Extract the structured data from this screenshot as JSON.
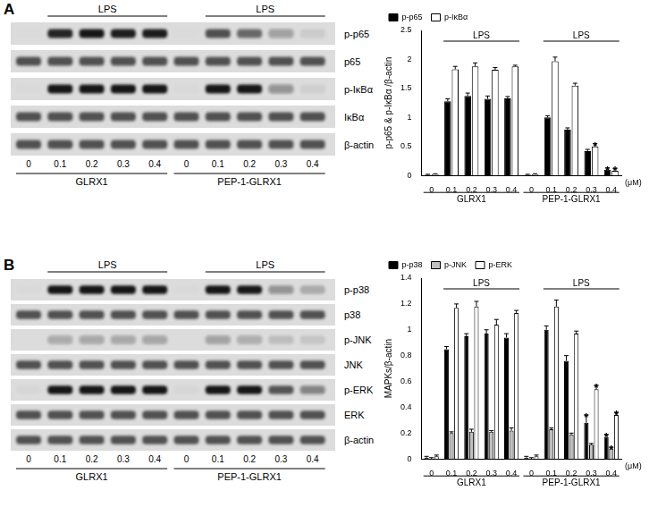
{
  "chart_data": [
    {
      "type": "bar",
      "panel": "A",
      "y_label": "p-p65 & p-IκBα /β-actin",
      "x_label": "(μM)",
      "categories": [
        "0",
        "0.1",
        "0.2",
        "0.3",
        "0.4",
        "0",
        "0.1",
        "0.2",
        "0.3",
        "0.4"
      ],
      "series": [
        {
          "name": "p-p65",
          "color": "#000000",
          "values": [
            0.01,
            1.28,
            1.37,
            1.32,
            1.33,
            0.01,
            1.0,
            0.79,
            0.42,
            0.1
          ],
          "errors": [
            0.01,
            0.04,
            0.05,
            0.05,
            0.03,
            0.01,
            0.03,
            0.03,
            0.03,
            0.03
          ]
        },
        {
          "name": "p-IκBα",
          "color": "#ffffff",
          "values": [
            0.02,
            1.83,
            1.88,
            1.82,
            1.88,
            0.02,
            1.97,
            1.55,
            0.5,
            0.08
          ],
          "errors": [
            0.01,
            0.05,
            0.06,
            0.04,
            0.02,
            0.01,
            0.07,
            0.04,
            0.05,
            0.04
          ]
        }
      ],
      "ylim": [
        0,
        2.5
      ],
      "yticks": [
        0,
        0.5,
        1,
        1.5,
        2,
        2.5
      ],
      "grid": false,
      "legend": "top",
      "groups": [
        {
          "label": "GLRX1",
          "from": 0,
          "to": 4
        },
        {
          "label": "PEP-1-GLRX1",
          "from": 5,
          "to": 9
        }
      ],
      "brackets": [
        {
          "label": "LPS",
          "from": 1,
          "to": 4
        },
        {
          "label": "LPS",
          "from": 6,
          "to": 9
        }
      ],
      "annotations": [
        {
          "text": "*",
          "index": 8,
          "series": "p-IκBα"
        },
        {
          "text": "*",
          "index": 9,
          "series": "p-p65"
        },
        {
          "text": "*",
          "index": 9,
          "series": "p-IκBα"
        }
      ],
      "blot": {
        "rows": [
          {
            "name": "p-p65",
            "series": "p-p65"
          },
          {
            "name": "p65"
          },
          {
            "name": "p-IκBα",
            "series": "p-IκBα"
          },
          {
            "name": "IκBα"
          },
          {
            "name": "β-actin"
          }
        ]
      }
    },
    {
      "type": "bar",
      "panel": "B",
      "y_label": "MAPKs/β-actin",
      "x_label": "(μM)",
      "categories": [
        "0",
        "0.1",
        "0.2",
        "0.3",
        "0.4",
        "0",
        "0.1",
        "0.2",
        "0.3",
        "0.4"
      ],
      "series": [
        {
          "name": "p-p38",
          "color": "#000000",
          "values": [
            0.01,
            0.85,
            0.95,
            0.97,
            0.94,
            0.01,
            1.0,
            0.76,
            0.28,
            0.17
          ],
          "errors": [
            0.01,
            0.02,
            0.02,
            0.03,
            0.03,
            0.01,
            0.03,
            0.04,
            0.06,
            0.02
          ]
        },
        {
          "name": "p-JNK",
          "color": "#bfbfbf",
          "values": [
            0.0,
            0.2,
            0.21,
            0.21,
            0.22,
            0.0,
            0.23,
            0.19,
            0.11,
            0.08
          ],
          "errors": [
            0.01,
            0.01,
            0.02,
            0.01,
            0.02,
            0.01,
            0.01,
            0.01,
            0.01,
            0.01
          ]
        },
        {
          "name": "p-ERK",
          "color": "#ffffff",
          "values": [
            0.02,
            1.17,
            1.18,
            1.04,
            1.13,
            0.02,
            1.18,
            0.97,
            0.54,
            0.34
          ],
          "errors": [
            0.01,
            0.03,
            0.04,
            0.04,
            0.02,
            0.01,
            0.05,
            0.02,
            0.03,
            0.02
          ]
        }
      ],
      "ylim": [
        0,
        1.4
      ],
      "yticks": [
        0,
        0.2,
        0.4,
        0.6,
        0.8,
        1,
        1.2,
        1.4
      ],
      "grid": false,
      "legend": "top",
      "groups": [
        {
          "label": "GLRX1",
          "from": 0,
          "to": 4
        },
        {
          "label": "PEP-1-GLRX1",
          "from": 5,
          "to": 9
        }
      ],
      "brackets": [
        {
          "label": "LPS",
          "from": 1,
          "to": 4
        },
        {
          "label": "LPS",
          "from": 6,
          "to": 9
        }
      ],
      "annotations": [
        {
          "text": "*",
          "index": 8,
          "series": "p-p38"
        },
        {
          "text": "*",
          "index": 8,
          "series": "p-ERK"
        },
        {
          "text": "*",
          "index": 9,
          "series": "p-p38"
        },
        {
          "text": "*",
          "index": 9,
          "series": "p-JNK"
        },
        {
          "text": "*",
          "index": 9,
          "series": "p-ERK"
        }
      ],
      "blot": {
        "rows": [
          {
            "name": "p-p38",
            "series": "p-p38"
          },
          {
            "name": "p38"
          },
          {
            "name": "p-JNK",
            "series": "p-JNK"
          },
          {
            "name": "JNK"
          },
          {
            "name": "p-ERK",
            "series": "p-ERK"
          },
          {
            "name": "ERK"
          },
          {
            "name": "β-actin"
          }
        ]
      }
    }
  ]
}
